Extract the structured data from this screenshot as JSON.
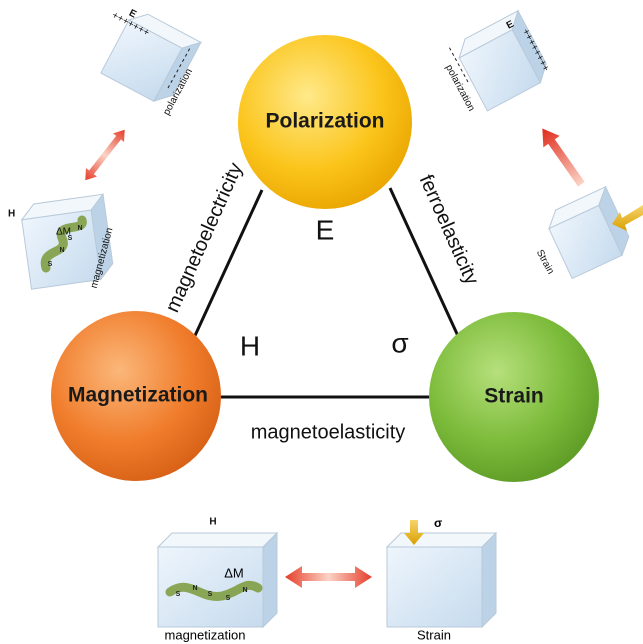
{
  "nodes": [
    {
      "label": "Polarization"
    },
    {
      "label": "Magnetization"
    },
    {
      "label": "Strain"
    }
  ],
  "edges": [
    {
      "label": "magnetoelectricity"
    },
    {
      "label": "ferroelasticity"
    },
    {
      "label": "magnetoelasticity"
    }
  ],
  "fields": [
    "E",
    "H",
    "σ"
  ],
  "insets": {
    "top_left": {
      "field": "E",
      "charges": "+++++++",
      "caption": "polarization"
    },
    "top_right": {
      "field": "E",
      "charges": "++++++++",
      "caption": "polarization"
    },
    "mid_left": {
      "field": "H",
      "moment": "ΔM",
      "caption": "magnetization",
      "poles": [
        "S",
        "N",
        "S",
        "N"
      ]
    },
    "mid_right": {
      "caption": "Strain"
    },
    "bottom_left": {
      "field": "H",
      "moment": "ΔM",
      "caption": "magnetization",
      "poles": [
        "S",
        "N",
        "S",
        "S",
        "N"
      ]
    },
    "bottom_right": {
      "field": "σ",
      "caption": "Strain"
    }
  }
}
